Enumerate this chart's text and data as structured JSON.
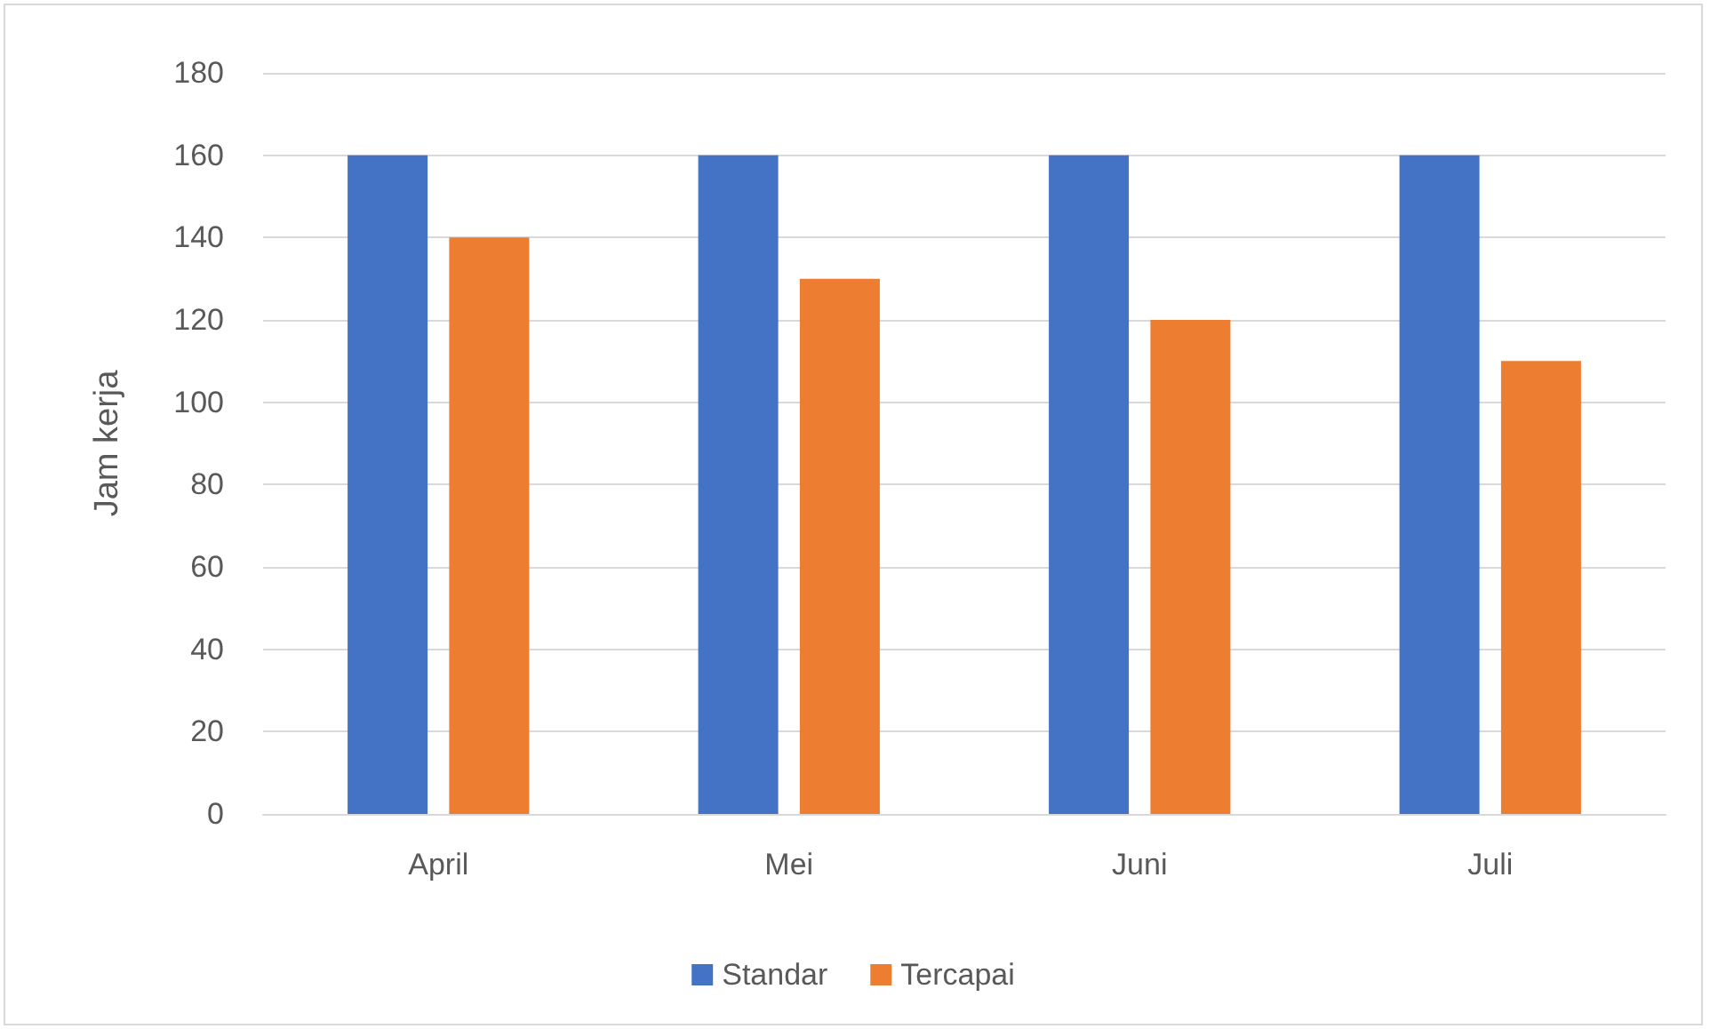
{
  "chart_data": {
    "type": "bar",
    "ylabel": "Jam kerja",
    "categories": [
      "April",
      "Mei",
      "Juni",
      "Juli"
    ],
    "series": [
      {
        "name": "Standar",
        "color": "#4472c4",
        "values": [
          160,
          160,
          160,
          160
        ]
      },
      {
        "name": "Tercapai",
        "color": "#ed7d31",
        "values": [
          140,
          130,
          120,
          110
        ]
      }
    ],
    "ylim": [
      0,
      180
    ],
    "yticks": [
      0,
      20,
      40,
      60,
      80,
      100,
      120,
      140,
      160,
      180
    ],
    "grid": "y",
    "legend": "bottom"
  }
}
